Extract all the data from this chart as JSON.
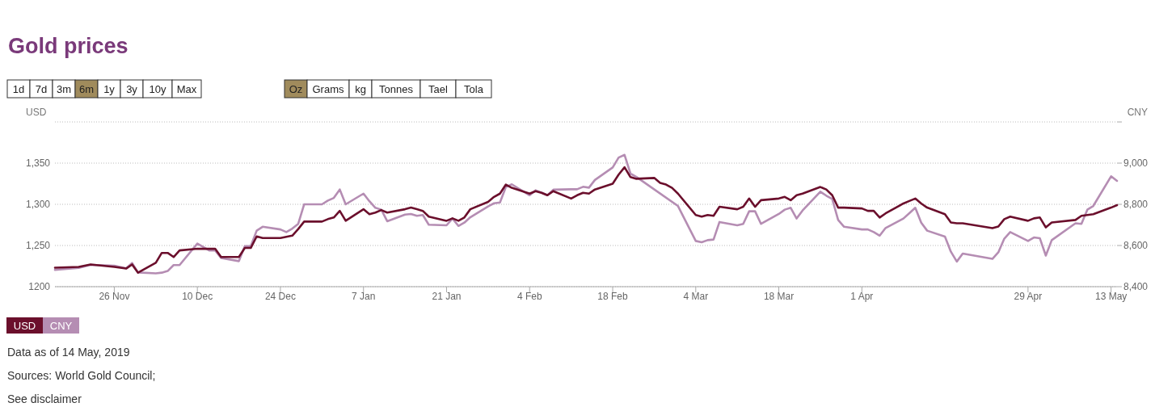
{
  "chart_data": {
    "type": "line",
    "title": "Gold prices",
    "ylabel": "USD",
    "y2label": "CNY",
    "annotations": [
      "1d",
      "7d",
      "3m",
      "6m",
      "1y",
      "3y",
      "10y",
      "Max",
      "Oz",
      "Grams",
      "kg",
      "Tonnes",
      "Tael",
      "Tola",
      "Data as of 14 May, 2019",
      "Sources: World Gold Council;",
      "See disclaimer"
    ],
    "xlim": [
      "2018-11-16",
      "2019-05-14"
    ],
    "xticks": [
      {
        "value": "2018-11-26",
        "label": "26 Nov"
      },
      {
        "value": "2018-12-10",
        "label": "10 Dec"
      },
      {
        "value": "2018-12-24",
        "label": "24 Dec"
      },
      {
        "value": "2019-01-07",
        "label": "7 Jan"
      },
      {
        "value": "2019-01-21",
        "label": "21 Jan"
      },
      {
        "value": "2019-02-04",
        "label": "4 Feb"
      },
      {
        "value": "2019-02-18",
        "label": "18 Feb"
      },
      {
        "value": "2019-03-04",
        "label": "4 Mar"
      },
      {
        "value": "2019-03-18",
        "label": "18 Mar"
      },
      {
        "value": "2019-04-01",
        "label": "1 Apr"
      },
      {
        "value": "2019-04-29",
        "label": "29 Apr"
      },
      {
        "value": "2019-05-13",
        "label": "13 May"
      }
    ],
    "ylim": [
      1200,
      1400
    ],
    "yticks": [
      1200,
      {
        "value": 1250,
        "label": "1,250"
      },
      {
        "value": 1300,
        "label": "1,300"
      },
      {
        "value": 1350,
        "label": "1,350"
      },
      {
        "value": 1400,
        "label": null
      }
    ],
    "y2lim": [
      8400,
      9200
    ],
    "y2ticks": [
      {
        "value": 8400,
        "label": "8,400"
      },
      {
        "value": 8600,
        "label": "8,600"
      },
      {
        "value": 8800,
        "label": "8,800"
      },
      {
        "value": 9000,
        "label": "9,000"
      },
      {
        "value": 9200,
        "label": null
      }
    ],
    "grid": "y",
    "legend": "bottom",
    "marker": "none",
    "line_style": "solid",
    "series": [
      {
        "name": "USD",
        "color": "#6b0f2c",
        "x": [
          "2018-11-16",
          "2018-11-20",
          "2018-11-22",
          "2018-11-26",
          "2018-11-28",
          "2018-11-29",
          "2018-11-30",
          "2018-12-03",
          "2018-12-04",
          "2018-12-05",
          "2018-12-06",
          "2018-12-07",
          "2018-12-10",
          "2018-12-12",
          "2018-12-13",
          "2018-12-14",
          "2018-12-17",
          "2018-12-18",
          "2018-12-19",
          "2018-12-20",
          "2018-12-21",
          "2018-12-24",
          "2018-12-26",
          "2018-12-27",
          "2018-12-28",
          "2018-12-31",
          "2019-01-01",
          "2019-01-02",
          "2019-01-03",
          "2019-01-04",
          "2019-01-07",
          "2019-01-08",
          "2019-01-09",
          "2019-01-10",
          "2019-01-11",
          "2019-01-14",
          "2019-01-15",
          "2019-01-16",
          "2019-01-17",
          "2019-01-18",
          "2019-01-21",
          "2019-01-22",
          "2019-01-23",
          "2019-01-24",
          "2019-01-25",
          "2019-01-28",
          "2019-01-29",
          "2019-01-30",
          "2019-01-31",
          "2019-02-01",
          "2019-02-04",
          "2019-02-05",
          "2019-02-06",
          "2019-02-07",
          "2019-02-08",
          "2019-02-11",
          "2019-02-12",
          "2019-02-13",
          "2019-02-14",
          "2019-02-15",
          "2019-02-18",
          "2019-02-19",
          "2019-02-20",
          "2019-02-21",
          "2019-02-22",
          "2019-02-25",
          "2019-02-26",
          "2019-02-27",
          "2019-02-28",
          "2019-03-01",
          "2019-03-04",
          "2019-03-05",
          "2019-03-06",
          "2019-03-07",
          "2019-03-08",
          "2019-03-11",
          "2019-03-12",
          "2019-03-13",
          "2019-03-14",
          "2019-03-15",
          "2019-03-18",
          "2019-03-19",
          "2019-03-20",
          "2019-03-21",
          "2019-03-22",
          "2019-03-25",
          "2019-03-26",
          "2019-03-27",
          "2019-03-28",
          "2019-03-29",
          "2019-04-01",
          "2019-04-02",
          "2019-04-03",
          "2019-04-04",
          "2019-04-05",
          "2019-04-08",
          "2019-04-09",
          "2019-04-10",
          "2019-04-11",
          "2019-04-12",
          "2019-04-15",
          "2019-04-16",
          "2019-04-17",
          "2019-04-18",
          "2019-04-23",
          "2019-04-24",
          "2019-04-25",
          "2019-04-26",
          "2019-04-29",
          "2019-04-30",
          "2019-05-01",
          "2019-05-02",
          "2019-05-03",
          "2019-05-07",
          "2019-05-08",
          "2019-05-09",
          "2019-05-10",
          "2019-05-13",
          "2019-05-14"
        ],
        "values": [
          1223,
          1224,
          1227,
          1224,
          1222,
          1227,
          1217,
          1229,
          1241,
          1241,
          1236,
          1244,
          1246,
          1246,
          1246,
          1236,
          1236,
          1247,
          1247,
          1261,
          1259,
          1259,
          1262,
          1270,
          1279,
          1279,
          1282,
          1284,
          1292,
          1280,
          1294,
          1288,
          1290,
          1293,
          1290,
          1294,
          1296,
          1294,
          1292,
          1285,
          1280,
          1283,
          1280,
          1284,
          1294,
          1303,
          1309,
          1313,
          1324,
          1320,
          1313,
          1316,
          1314,
          1311,
          1316,
          1307,
          1311,
          1314,
          1313,
          1318,
          1325,
          1336,
          1345,
          1333,
          1331,
          1332,
          1326,
          1324,
          1320,
          1313,
          1287,
          1285,
          1287,
          1286,
          1297,
          1294,
          1297,
          1307,
          1297,
          1305,
          1307,
          1309,
          1305,
          1311,
          1313,
          1321,
          1318,
          1311,
          1296,
          1296,
          1295,
          1292,
          1292,
          1284,
          1289,
          1301,
          1304,
          1307,
          1301,
          1296,
          1288,
          1278,
          1277,
          1277,
          1271,
          1273,
          1282,
          1285,
          1280,
          1283,
          1284,
          1272,
          1278,
          1281,
          1286,
          1287,
          1288,
          1296,
          1299
        ]
      },
      {
        "name": "CNY",
        "color": "#b58db3",
        "axis": "y2",
        "x": [
          "2018-11-16",
          "2018-11-20",
          "2018-11-22",
          "2018-11-26",
          "2018-11-28",
          "2018-11-29",
          "2018-11-30",
          "2018-12-03",
          "2018-12-04",
          "2018-12-05",
          "2018-12-06",
          "2018-12-07",
          "2018-12-10",
          "2018-12-11",
          "2018-12-12",
          "2018-12-13",
          "2018-12-14",
          "2018-12-17",
          "2018-12-18",
          "2018-12-19",
          "2018-12-20",
          "2018-12-21",
          "2018-12-24",
          "2018-12-25",
          "2018-12-26",
          "2018-12-27",
          "2018-12-28",
          "2018-12-31",
          "2019-01-01",
          "2019-01-02",
          "2019-01-03",
          "2019-01-04",
          "2019-01-07",
          "2019-01-08",
          "2019-01-09",
          "2019-01-10",
          "2019-01-11",
          "2019-01-14",
          "2019-01-15",
          "2019-01-16",
          "2019-01-17",
          "2019-01-18",
          "2019-01-21",
          "2019-01-22",
          "2019-01-23",
          "2019-01-24",
          "2019-01-25",
          "2019-01-28",
          "2019-01-29",
          "2019-01-30",
          "2019-01-31",
          "2019-02-01",
          "2019-02-04",
          "2019-02-05",
          "2019-02-06",
          "2019-02-07",
          "2019-02-08",
          "2019-02-11",
          "2019-02-12",
          "2019-02-13",
          "2019-02-14",
          "2019-02-15",
          "2019-02-18",
          "2019-02-19",
          "2019-02-20",
          "2019-02-21",
          "2019-02-22",
          "2019-03-01",
          "2019-03-04",
          "2019-03-05",
          "2019-03-06",
          "2019-03-07",
          "2019-03-08",
          "2019-03-11",
          "2019-03-12",
          "2019-03-13",
          "2019-03-14",
          "2019-03-15",
          "2019-03-18",
          "2019-03-19",
          "2019-03-20",
          "2019-03-21",
          "2019-03-22",
          "2019-03-25",
          "2019-03-26",
          "2019-03-27",
          "2019-03-28",
          "2019-03-29",
          "2019-04-01",
          "2019-04-02",
          "2019-04-03",
          "2019-04-04",
          "2019-04-05",
          "2019-04-08",
          "2019-04-09",
          "2019-04-10",
          "2019-04-11",
          "2019-04-12",
          "2019-04-15",
          "2019-04-16",
          "2019-04-17",
          "2019-04-18",
          "2019-04-23",
          "2019-04-24",
          "2019-04-25",
          "2019-04-26",
          "2019-04-29",
          "2019-04-30",
          "2019-05-01",
          "2019-05-02",
          "2019-05-03",
          "2019-05-07",
          "2019-05-08",
          "2019-05-09",
          "2019-05-10",
          "2019-05-13",
          "2019-05-14"
        ],
        "values": [
          8482,
          8491,
          8506,
          8502,
          8489,
          8515,
          8469,
          8465,
          8468,
          8476,
          8505,
          8505,
          8609,
          8593,
          8576,
          8576,
          8539,
          8524,
          8597,
          8597,
          8672,
          8691,
          8678,
          8665,
          8682,
          8705,
          8800,
          8800,
          8818,
          8831,
          8872,
          8800,
          8852,
          8815,
          8783,
          8774,
          8718,
          8750,
          8753,
          8744,
          8748,
          8701,
          8698,
          8731,
          8695,
          8711,
          8737,
          8790,
          8805,
          8809,
          8884,
          8897,
          8844,
          8868,
          8857,
          8844,
          8871,
          8873,
          8873,
          8885,
          8881,
          8918,
          8979,
          9027,
          9040,
          8949,
          8933,
          8792,
          8622,
          8616,
          8626,
          8629,
          8714,
          8698,
          8705,
          8766,
          8766,
          8705,
          8753,
          8774,
          8783,
          8731,
          8770,
          8861,
          8842,
          8826,
          8724,
          8691,
          8678,
          8678,
          8665,
          8648,
          8685,
          8731,
          8757,
          8783,
          8711,
          8672,
          8643,
          8570,
          8522,
          8561,
          8535,
          8567,
          8633,
          8665,
          8622,
          8639,
          8635,
          8551,
          8626,
          8708,
          8705,
          8774,
          8792,
          8936,
          8914
        ]
      }
    ]
  }
}
